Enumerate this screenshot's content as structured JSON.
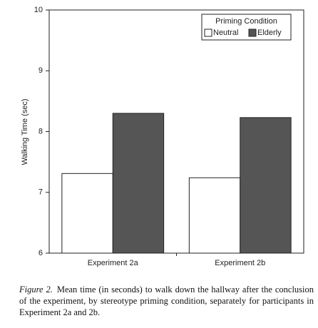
{
  "chart_data": {
    "type": "bar",
    "ylabel": "Walking Time (sec)",
    "categories": [
      "Experiment 2a",
      "Experiment 2b"
    ],
    "series": [
      {
        "name": "Neutral",
        "color": "#ffffff",
        "values": [
          7.31,
          7.24
        ]
      },
      {
        "name": "Elderly",
        "color": "#555555",
        "values": [
          8.3,
          8.23
        ]
      }
    ],
    "ylim": [
      6,
      10
    ],
    "yticks": [
      6,
      7,
      8,
      9,
      10
    ],
    "grid": false,
    "legend_title": "Priming Condition",
    "legend_position": "upper right"
  },
  "caption": {
    "label": "Figure 2.",
    "text": "Mean time (in seconds) to walk down the hallway after the conclusion of the experiment, by stereotype priming condition, separately for participants in Experiment 2a and 2b."
  }
}
